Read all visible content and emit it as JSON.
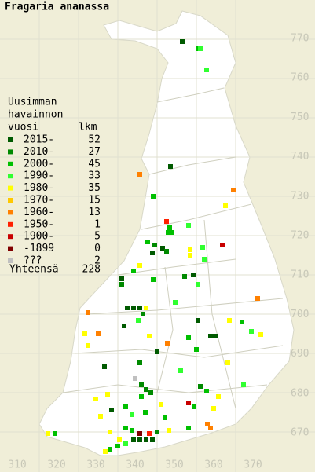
{
  "header": {
    "title": "Fragaria ananassa"
  },
  "legend": {
    "heading": [
      "Uusimman",
      "havainnon",
      "vuosi"
    ],
    "count_header": "lkm",
    "rows": [
      {
        "label": "2015-",
        "count": 52,
        "color": "#005a00"
      },
      {
        "label": "2010-",
        "count": 27,
        "color": "#008a00"
      },
      {
        "label": "2000-",
        "count": 45,
        "color": "#00c000"
      },
      {
        "label": "1990-",
        "count": 33,
        "color": "#30ff30"
      },
      {
        "label": "1980-",
        "count": 35,
        "color": "#ffff00"
      },
      {
        "label": "1970-",
        "count": 15,
        "color": "#ffc800"
      },
      {
        "label": "1960-",
        "count": 13,
        "color": "#ff8000"
      },
      {
        "label": "1950-",
        "count": 1,
        "color": "#ff2000"
      },
      {
        "label": "1900-",
        "count": 5,
        "color": "#c80000"
      },
      {
        "label": "-1899",
        "count": 0,
        "color": "#800000"
      },
      {
        "label": "???",
        "count": 2,
        "color": "#c0c0c0"
      }
    ],
    "total": {
      "label": "Yhteensä",
      "value": 228
    }
  },
  "map": {
    "y_labels": [
      "770",
      "760",
      "750",
      "740",
      "730",
      "720",
      "710",
      "700",
      "690",
      "680",
      "670"
    ],
    "x_labels": [
      "310",
      "320",
      "330",
      "340",
      "350",
      "360",
      "370"
    ]
  }
}
